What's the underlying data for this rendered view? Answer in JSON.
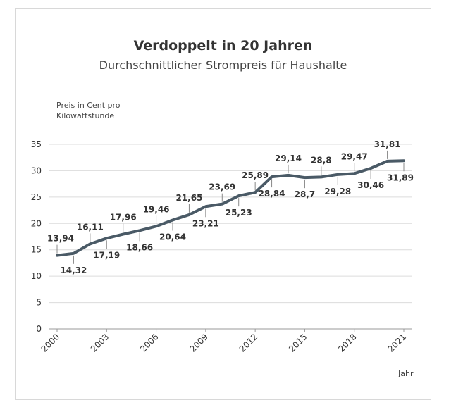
{
  "chart_data": {
    "type": "line",
    "title": "Verdoppelt in 20 Jahren",
    "subtitle": "Durchschnittlicher Strompreis für Haushalte",
    "ylabel_line1": "Preis in Cent pro",
    "ylabel_line2": "Kilowattstunde",
    "xlabel": "Jahr",
    "ylim": [
      0,
      35
    ],
    "yticks": [
      0,
      5,
      10,
      15,
      20,
      25,
      30,
      35
    ],
    "xlim": [
      2000,
      2021
    ],
    "xticks": [
      "2000",
      "2003",
      "2006",
      "2009",
      "2012",
      "2015",
      "2018",
      "2021"
    ],
    "grid": true,
    "series": [
      {
        "name": "Strompreis",
        "color": "#4a5a66",
        "x": [
          2000,
          2001,
          2002,
          2003,
          2004,
          2005,
          2006,
          2007,
          2008,
          2009,
          2010,
          2011,
          2012,
          2013,
          2014,
          2015,
          2016,
          2017,
          2018,
          2019,
          2020,
          2021
        ],
        "values": [
          13.94,
          14.32,
          16.11,
          17.19,
          17.96,
          18.66,
          19.46,
          20.64,
          21.65,
          23.21,
          23.69,
          25.23,
          25.89,
          28.84,
          29.14,
          28.7,
          28.8,
          29.28,
          29.47,
          30.46,
          31.81,
          31.89
        ]
      }
    ],
    "data_labels": [
      {
        "x": 2000,
        "text": "13,94",
        "side": "above"
      },
      {
        "x": 2001,
        "text": "14,32",
        "side": "below"
      },
      {
        "x": 2002,
        "text": "16,11",
        "side": "above"
      },
      {
        "x": 2003,
        "text": "17,19",
        "side": "below"
      },
      {
        "x": 2004,
        "text": "17,96",
        "side": "above"
      },
      {
        "x": 2005,
        "text": "18,66",
        "side": "below"
      },
      {
        "x": 2006,
        "text": "19,46",
        "side": "above"
      },
      {
        "x": 2007,
        "text": "20,64",
        "side": "below"
      },
      {
        "x": 2008,
        "text": "21,65",
        "side": "above"
      },
      {
        "x": 2009,
        "text": "23,21",
        "side": "below"
      },
      {
        "x": 2010,
        "text": "23,69",
        "side": "above"
      },
      {
        "x": 2011,
        "text": "25,23",
        "side": "below"
      },
      {
        "x": 2012,
        "text": "25,89",
        "side": "above"
      },
      {
        "x": 2013,
        "text": "28,84",
        "side": "below"
      },
      {
        "x": 2014,
        "text": "29,14",
        "side": "above"
      },
      {
        "x": 2015,
        "text": "28,7",
        "side": "below"
      },
      {
        "x": 2016,
        "text": "28,8",
        "side": "above"
      },
      {
        "x": 2017,
        "text": "29,28",
        "side": "below"
      },
      {
        "x": 2018,
        "text": "29,47",
        "side": "above"
      },
      {
        "x": 2019,
        "text": "30,46",
        "side": "below"
      },
      {
        "x": 2020,
        "text": "31,81",
        "side": "above"
      },
      {
        "x": 2021,
        "text": "31,89",
        "side": "below"
      }
    ]
  }
}
